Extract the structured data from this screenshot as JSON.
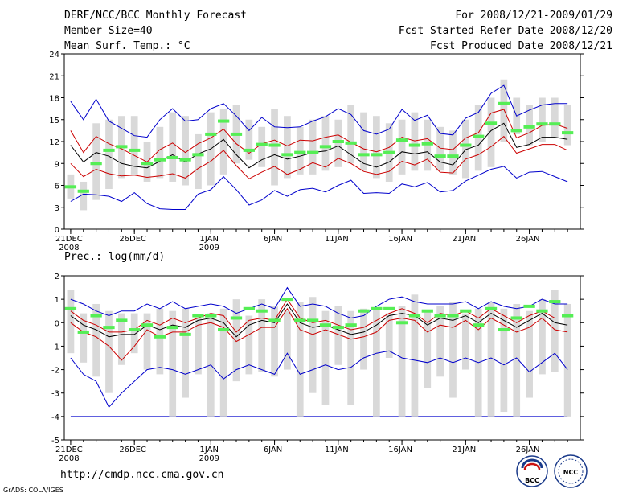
{
  "header": {
    "title": "DERF/NCC/BCC Monthly Forecast",
    "member_size": "Member Size=40",
    "forecast_period": "For 2008/12/21-2009/01/29",
    "start_date": "Fcst Started Refer Date 2008/12/20",
    "produced_date": "Fcst Produced Date 2008/12/21"
  },
  "footer": {
    "url": "http://cmdp.ncc.cma.gov.cn",
    "credit": "GrADS: COLA/IGES",
    "logo_left_text": "BCC",
    "logo_right_text": "NCC"
  },
  "colors": {
    "max_min": "#0000cc",
    "spread": "#cc0000",
    "mean": "#000000",
    "box": "#d9d9d9",
    "obs": "#55ee55"
  },
  "chart_data": [
    {
      "type": "box",
      "title": "Mean Surf. Temp.: °C",
      "ylim": [
        0,
        24
      ],
      "yticks": [
        "0",
        "3",
        "6",
        "9",
        "12",
        "15",
        "18",
        "21",
        "24"
      ],
      "xticks": [
        {
          "day": 0,
          "label": "21DEC",
          "sub": "2008"
        },
        {
          "day": 5,
          "label": "26DEC",
          "sub": ""
        },
        {
          "day": 11,
          "label": "1JAN",
          "sub": "2009"
        },
        {
          "day": 16,
          "label": "6JAN",
          "sub": ""
        },
        {
          "day": 21,
          "label": "11JAN",
          "sub": ""
        },
        {
          "day": 26,
          "label": "16JAN",
          "sub": ""
        },
        {
          "day": 31,
          "label": "21JAN",
          "sub": ""
        },
        {
          "day": 36,
          "label": "26JAN",
          "sub": ""
        }
      ],
      "days": 40,
      "box_low": [
        4.2,
        2.6,
        4.0,
        5.5,
        7.0,
        7.5,
        6.5,
        7.0,
        6.5,
        6.0,
        5.5,
        6.0,
        7.5,
        9.0,
        9.5,
        8.5,
        6.0,
        7.0,
        7.5,
        7.5,
        8.0,
        8.5,
        9.0,
        8.0,
        7.0,
        6.5,
        7.5,
        8.0,
        8.0,
        8.0,
        7.5,
        7.0,
        8.0,
        8.5,
        12.0,
        13.0,
        11.5,
        12.0,
        12.5,
        11.5
      ],
      "box_high": [
        7.5,
        6.5,
        14.5,
        15.0,
        15.5,
        15.5,
        12.0,
        14.0,
        16.0,
        15.5,
        13.0,
        16.0,
        16.5,
        17.0,
        15.0,
        14.0,
        16.5,
        15.5,
        14.0,
        15.0,
        15.5,
        15.0,
        17.0,
        16.0,
        15.5,
        14.5,
        15.0,
        16.0,
        15.0,
        14.0,
        13.5,
        15.0,
        17.0,
        18.0,
        20.5,
        18.0,
        17.0,
        18.0,
        18.0,
        17.0
      ],
      "max": [
        17.5,
        15.0,
        17.8,
        14.8,
        13.8,
        12.8,
        12.6,
        15.0,
        16.5,
        14.8,
        15.0,
        16.5,
        17.2,
        15.5,
        13.5,
        15.3,
        14.0,
        13.9,
        14.0,
        14.8,
        15.4,
        16.5,
        15.7,
        13.5,
        13.0,
        13.7,
        16.4,
        14.9,
        15.6,
        13.1,
        12.9,
        15.2,
        16.0,
        18.6,
        19.7,
        15.5,
        16.3,
        17.0,
        17.2,
        17.2
      ],
      "upper": [
        13.5,
        10.5,
        12.7,
        11.7,
        11.0,
        10.1,
        9.2,
        10.9,
        11.8,
        10.5,
        11.7,
        12.5,
        13.7,
        11.7,
        10.4,
        11.7,
        12.2,
        11.4,
        12.2,
        12.1,
        12.6,
        12.9,
        11.9,
        11.0,
        10.6,
        11.2,
        12.6,
        12.1,
        12.4,
        11.1,
        10.9,
        12.5,
        13.2,
        15.9,
        16.4,
        12.5,
        13.2,
        14.2,
        14.4,
        13.8
      ],
      "mean": [
        11.5,
        9.2,
        10.5,
        10.0,
        9.0,
        8.6,
        8.4,
        9.3,
        10.2,
        9.2,
        10.3,
        11.0,
        12.3,
        10.2,
        8.4,
        9.5,
        10.2,
        9.6,
        10.0,
        10.5,
        10.7,
        11.4,
        10.2,
        9.0,
        8.5,
        9.2,
        10.6,
        10.3,
        10.6,
        9.2,
        8.8,
        10.9,
        11.5,
        13.5,
        14.5,
        11.2,
        11.6,
        12.6,
        12.6,
        12.3
      ],
      "lower": [
        9.0,
        7.2,
        8.2,
        7.6,
        7.3,
        7.4,
        7.1,
        7.3,
        7.6,
        7.0,
        8.3,
        9.3,
        10.8,
        8.7,
        6.9,
        7.8,
        8.6,
        7.5,
        8.2,
        9.1,
        8.5,
        9.7,
        9.0,
        7.9,
        7.5,
        7.9,
        9.3,
        8.8,
        9.6,
        7.8,
        7.7,
        9.6,
        10.2,
        11.3,
        12.7,
        10.4,
        11.0,
        11.6,
        11.6,
        10.8
      ],
      "min": [
        3.8,
        4.8,
        4.7,
        4.5,
        3.8,
        5.0,
        3.5,
        2.8,
        2.7,
        2.7,
        4.8,
        5.4,
        7.2,
        5.4,
        3.3,
        4.0,
        5.3,
        4.5,
        5.4,
        5.6,
        5.1,
        6.0,
        6.7,
        4.9,
        5.0,
        4.9,
        6.2,
        5.8,
        6.4,
        5.1,
        5.3,
        6.6,
        7.4,
        8.2,
        8.6,
        7.0,
        7.8,
        7.9,
        7.2,
        6.5
      ],
      "obs": [
        5.8,
        5.2,
        9.0,
        10.8,
        11.3,
        10.8,
        9.0,
        9.5,
        9.8,
        9.5,
        10.2,
        13.0,
        14.8,
        13.0,
        10.8,
        11.6,
        11.5,
        10.2,
        10.5,
        10.5,
        11.3,
        12.0,
        11.8,
        10.2,
        10.2,
        10.5,
        12.2,
        11.5,
        11.7,
        10.0,
        10.0,
        11.5,
        12.7,
        14.5,
        17.2,
        13.5,
        14.0,
        14.4,
        14.4,
        13.2
      ]
    },
    {
      "type": "box",
      "title": "Prec.: log(mm/d)",
      "ylim": [
        -5,
        2
      ],
      "yticks": [
        "-5",
        "-4",
        "-3",
        "-2",
        "-1",
        "0",
        "1",
        "2"
      ],
      "xticks": [
        {
          "day": 0,
          "label": "21DEC",
          "sub": "2008"
        },
        {
          "day": 5,
          "label": "26DEC",
          "sub": ""
        },
        {
          "day": 11,
          "label": "1JAN",
          "sub": "2009"
        },
        {
          "day": 16,
          "label": "6JAN",
          "sub": ""
        },
        {
          "day": 21,
          "label": "11JAN",
          "sub": ""
        },
        {
          "day": 26,
          "label": "16JAN",
          "sub": ""
        },
        {
          "day": 31,
          "label": "21JAN",
          "sub": ""
        },
        {
          "day": 36,
          "label": "26JAN",
          "sub": ""
        }
      ],
      "days": 40,
      "box_low": [
        -1.3,
        -1.7,
        -2.3,
        -3.0,
        -1.8,
        -1.3,
        -2.0,
        -2.2,
        -4.0,
        -3.2,
        -2.2,
        -4.0,
        -4.0,
        -2.5,
        -2.2,
        -2.1,
        -2.3,
        -2.0,
        -4.0,
        -3.0,
        -3.5,
        -1.8,
        -3.5,
        -2.0,
        -4.0,
        -1.5,
        -4.0,
        -4.0,
        -2.8,
        -2.3,
        -3.2,
        -2.0,
        -4.0,
        -4.0,
        -3.8,
        -4.0,
        -3.2,
        -2.2,
        -2.1,
        -4.0
      ],
      "box_high": [
        1.4,
        0.4,
        0.8,
        0.5,
        0.4,
        0.4,
        0.4,
        0.6,
        0.5,
        0.6,
        0.2,
        0.4,
        0.6,
        1.0,
        0.3,
        1.0,
        0.7,
        0.5,
        0.9,
        1.1,
        0.5,
        0.7,
        0.5,
        0.6,
        0.6,
        0.4,
        0.7,
        1.2,
        0.5,
        0.7,
        0.9,
        0.4,
        0.6,
        0.9,
        0.6,
        0.8,
        0.5,
        1.0,
        1.4,
        0.8
      ],
      "max": [
        1.0,
        0.8,
        0.5,
        0.3,
        0.5,
        0.5,
        0.8,
        0.6,
        0.9,
        0.6,
        0.7,
        0.8,
        0.7,
        0.4,
        0.6,
        0.8,
        0.6,
        1.5,
        0.7,
        0.8,
        0.7,
        0.4,
        0.2,
        0.3,
        0.7,
        1.0,
        1.1,
        0.9,
        0.8,
        0.8,
        0.8,
        0.9,
        0.6,
        0.9,
        0.7,
        0.6,
        0.7,
        1.0,
        0.8,
        0.8
      ],
      "upper": [
        0.5,
        0.1,
        -0.1,
        -0.4,
        -0.4,
        -0.3,
        0.1,
        -0.1,
        0.2,
        0.0,
        0.2,
        0.4,
        0.3,
        -0.4,
        0.1,
        0.2,
        0.1,
        1.0,
        0.2,
        0.0,
        0.1,
        -0.1,
        -0.3,
        -0.2,
        0.1,
        0.4,
        0.6,
        0.4,
        0.0,
        0.4,
        0.3,
        0.5,
        0.2,
        0.6,
        0.3,
        0.0,
        0.3,
        0.5,
        0.2,
        0.2
      ],
      "mean": [
        0.3,
        -0.1,
        -0.3,
        -0.6,
        -0.5,
        -0.5,
        -0.1,
        -0.3,
        -0.1,
        -0.2,
        0.1,
        0.2,
        0.0,
        -0.6,
        -0.1,
        0.1,
        0.0,
        0.8,
        0.0,
        -0.2,
        -0.1,
        -0.3,
        -0.5,
        -0.4,
        -0.1,
        0.3,
        0.4,
        0.3,
        -0.1,
        0.2,
        0.1,
        0.3,
        0.0,
        0.4,
        0.1,
        -0.2,
        0.1,
        0.4,
        0.0,
        -0.1
      ],
      "lower": [
        0.0,
        -0.4,
        -0.6,
        -1.0,
        -1.6,
        -1.0,
        -0.3,
        -0.6,
        -0.4,
        -0.4,
        -0.1,
        0.0,
        -0.2,
        -0.8,
        -0.5,
        -0.2,
        -0.2,
        0.6,
        -0.3,
        -0.5,
        -0.3,
        -0.5,
        -0.7,
        -0.6,
        -0.4,
        0.1,
        0.2,
        0.1,
        -0.4,
        -0.1,
        -0.2,
        0.1,
        -0.3,
        0.2,
        -0.1,
        -0.4,
        -0.2,
        0.2,
        -0.3,
        -0.4
      ],
      "min": [
        -1.5,
        -2.2,
        -2.5,
        -3.6,
        -3.0,
        -2.5,
        -2.0,
        -1.9,
        -2.0,
        -2.2,
        -2.0,
        -1.8,
        -2.4,
        -2.0,
        -1.8,
        -2.0,
        -2.2,
        -1.3,
        -2.2,
        -2.0,
        -1.8,
        -2.0,
        -1.9,
        -1.5,
        -1.3,
        -1.2,
        -1.5,
        -1.6,
        -1.7,
        -1.5,
        -1.7,
        -1.5,
        -1.7,
        -1.5,
        -1.8,
        -1.5,
        -2.1,
        -1.7,
        -1.3,
        -2.0
      ],
      "obs": [
        0.6,
        -0.4,
        0.3,
        -0.2,
        0.1,
        -0.3,
        -0.1,
        -0.6,
        -0.2,
        -0.5,
        0.3,
        0.3,
        -0.3,
        0.2,
        0.6,
        0.5,
        0.1,
        1.0,
        0.1,
        0.1,
        -0.1,
        -0.2,
        -0.1,
        0.5,
        0.6,
        0.6,
        0.0,
        0.3,
        0.5,
        0.3,
        0.3,
        0.5,
        -0.1,
        0.6,
        -0.3,
        0.2,
        0.7,
        0.5,
        0.9,
        0.3
      ],
      "floor": -4.0
    }
  ]
}
